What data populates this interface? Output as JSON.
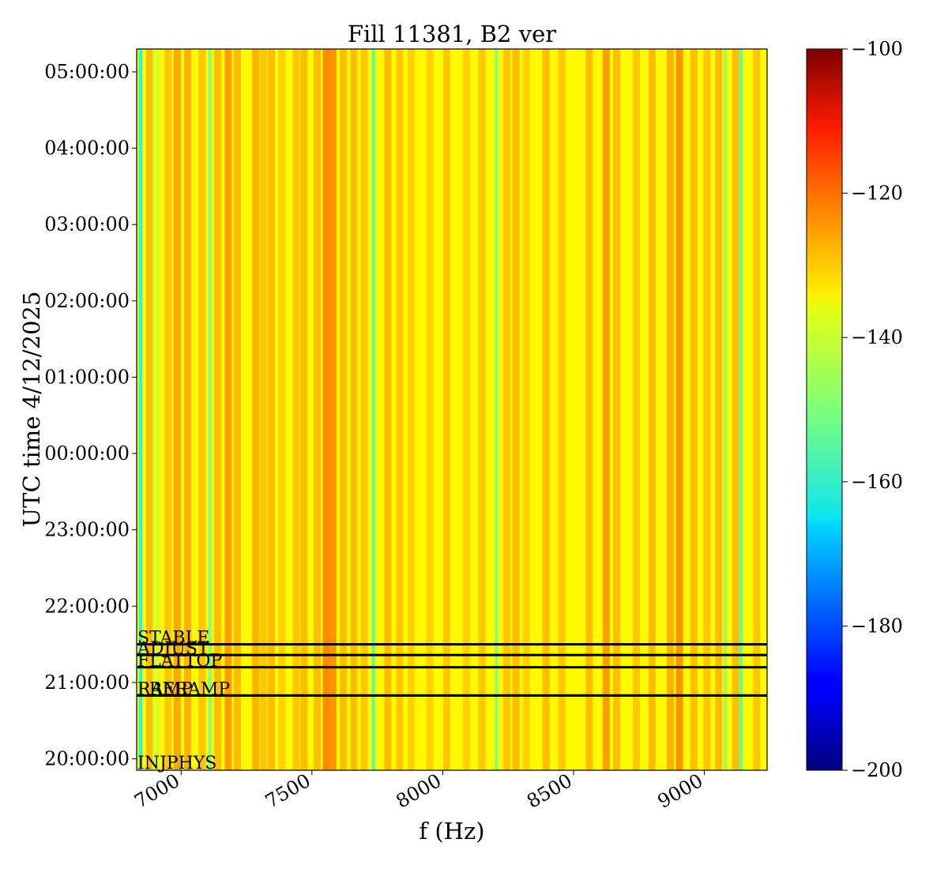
{
  "chart_data": {
    "type": "heatmap",
    "title": "Fill 11381, B2 ver",
    "xlabel": "f (Hz)",
    "ylabel": "UTC time 4/12/2025",
    "xlim": [
      6830,
      9240
    ],
    "x_ticks": [
      7000,
      7500,
      8000,
      8500,
      9000
    ],
    "x_tick_labels": [
      "7000",
      "7500",
      "8000",
      "8500",
      "9000"
    ],
    "y_range_hours": [
      19.85,
      29.3
    ],
    "y_ticks_hours": [
      20,
      21,
      22,
      23,
      24,
      25,
      26,
      27,
      28,
      29
    ],
    "y_tick_labels": [
      "20:00:00",
      "21:00:00",
      "22:00:00",
      "23:00:00",
      "00:00:00",
      "01:00:00",
      "02:00:00",
      "03:00:00",
      "04:00:00",
      "05:00:00"
    ],
    "colorbar": {
      "colormap": "jet",
      "range": [
        -200,
        -100
      ],
      "ticks": [
        -100,
        -120,
        -140,
        -160,
        -180,
        -200
      ],
      "tick_labels": [
        "−100",
        "−120",
        "−140",
        "−160",
        "−180",
        "−200"
      ]
    },
    "grid": false,
    "typical_level": -137,
    "peak_level": -126,
    "bands": [
      {
        "f": 6845,
        "level": -160
      },
      {
        "f": 6880,
        "level": -131
      },
      {
        "f": 6905,
        "level": -141
      },
      {
        "f": 6950,
        "level": -132
      },
      {
        "f": 6985,
        "level": -129
      },
      {
        "f": 7025,
        "level": -130
      },
      {
        "f": 7080,
        "level": -132
      },
      {
        "f": 7110,
        "level": -150
      },
      {
        "f": 7140,
        "level": -131
      },
      {
        "f": 7180,
        "level": -128
      },
      {
        "f": 7215,
        "level": -131
      },
      {
        "f": 7285,
        "level": -130
      },
      {
        "f": 7315,
        "level": -132
      },
      {
        "f": 7345,
        "level": -131
      },
      {
        "f": 7385,
        "level": -133
      },
      {
        "f": 7440,
        "level": -132
      },
      {
        "f": 7470,
        "level": -131
      },
      {
        "f": 7520,
        "level": -131
      },
      {
        "f": 7555,
        "level": -126
      },
      {
        "f": 7580,
        "level": -127
      },
      {
        "f": 7620,
        "level": -131
      },
      {
        "f": 7660,
        "level": -131
      },
      {
        "f": 7700,
        "level": -132
      },
      {
        "f": 7735,
        "level": -155
      },
      {
        "f": 7790,
        "level": -131
      },
      {
        "f": 7835,
        "level": -132
      },
      {
        "f": 7880,
        "level": -133
      },
      {
        "f": 7950,
        "level": -133
      },
      {
        "f": 8015,
        "level": -132
      },
      {
        "f": 8090,
        "level": -133
      },
      {
        "f": 8150,
        "level": -132
      },
      {
        "f": 8205,
        "level": -150
      },
      {
        "f": 8245,
        "level": -132
      },
      {
        "f": 8280,
        "level": -131
      },
      {
        "f": 8320,
        "level": -133
      },
      {
        "f": 8395,
        "level": -131
      },
      {
        "f": 8455,
        "level": -132
      },
      {
        "f": 8560,
        "level": -131
      },
      {
        "f": 8625,
        "level": -128
      },
      {
        "f": 8665,
        "level": -131
      },
      {
        "f": 8740,
        "level": -132
      },
      {
        "f": 8800,
        "level": -131
      },
      {
        "f": 8870,
        "level": -130
      },
      {
        "f": 8905,
        "level": -127
      },
      {
        "f": 8960,
        "level": -131
      },
      {
        "f": 9010,
        "level": -132
      },
      {
        "f": 9055,
        "level": -131
      },
      {
        "f": 9080,
        "level": -148
      },
      {
        "f": 9120,
        "level": -131
      },
      {
        "f": 9140,
        "level": -153
      },
      {
        "f": 9200,
        "level": -132
      }
    ],
    "annotations": [
      {
        "label": "STABLE",
        "hour": 21.5
      },
      {
        "label": "ADJUST",
        "hour": 21.36
      },
      {
        "label": "FLATTOP",
        "hour": 21.2
      },
      {
        "label": "RAMP",
        "hour": 20.83
      },
      {
        "label": "PRERAMP",
        "hour": 20.83
      },
      {
        "label": "INJPHYS",
        "hour": 19.85
      }
    ]
  }
}
